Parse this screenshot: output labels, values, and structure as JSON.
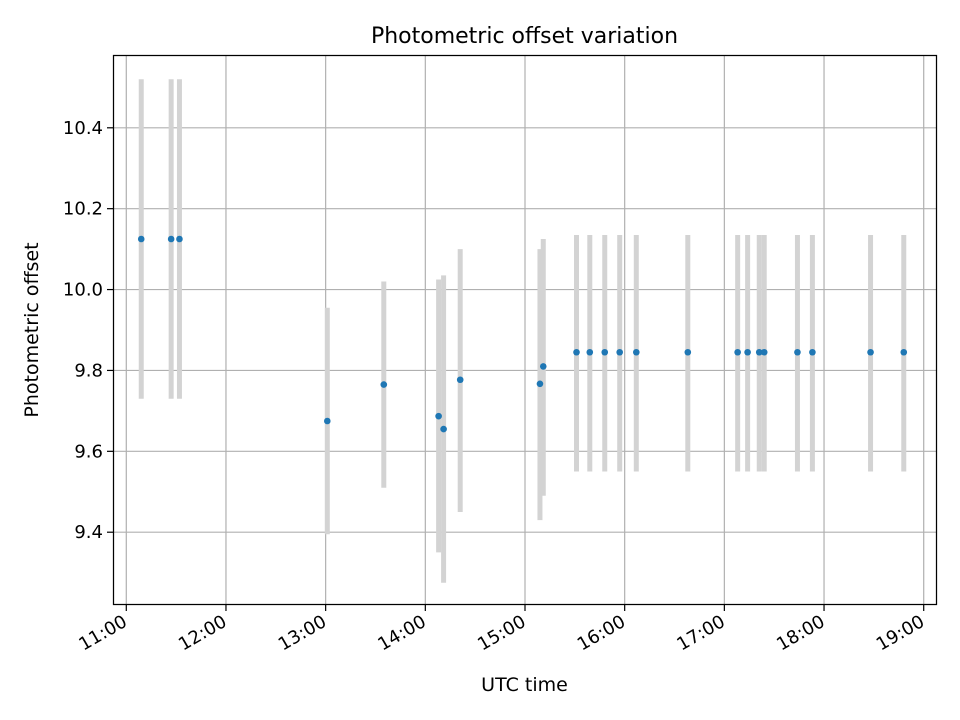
{
  "chart_data": {
    "type": "scatter",
    "title": "Photometric offset variation",
    "xlabel": "UTC time",
    "ylabel": "Photometric offset",
    "x_axis_kind": "time",
    "xlim": [
      "10:52",
      "19:08"
    ],
    "ylim": [
      9.22,
      10.58
    ],
    "x_ticks": [
      "11:00",
      "12:00",
      "13:00",
      "14:00",
      "15:00",
      "16:00",
      "17:00",
      "18:00",
      "19:00"
    ],
    "y_ticks": [
      9.4,
      9.6,
      9.8,
      10.0,
      10.2,
      10.4
    ],
    "grid": true,
    "colors": {
      "point": "#1f77b4",
      "errorbar": "#d3d3d3",
      "grid": "#b0b0b0"
    },
    "points": [
      {
        "x": "11:09",
        "y": 10.125,
        "yerr_low": 9.73,
        "yerr_high": 10.52
      },
      {
        "x": "11:27",
        "y": 10.125,
        "yerr_low": 9.73,
        "yerr_high": 10.52
      },
      {
        "x": "11:32",
        "y": 10.125,
        "yerr_low": 9.73,
        "yerr_high": 10.52
      },
      {
        "x": "13:01",
        "y": 9.675,
        "yerr_low": 9.395,
        "yerr_high": 9.955
      },
      {
        "x": "13:35",
        "y": 9.765,
        "yerr_low": 9.51,
        "yerr_high": 10.02
      },
      {
        "x": "14:08",
        "y": 9.687,
        "yerr_low": 9.35,
        "yerr_high": 10.025
      },
      {
        "x": "14:11",
        "y": 9.655,
        "yerr_low": 9.275,
        "yerr_high": 10.035
      },
      {
        "x": "14:21",
        "y": 9.777,
        "yerr_low": 9.45,
        "yerr_high": 10.1
      },
      {
        "x": "15:09",
        "y": 9.767,
        "yerr_low": 9.43,
        "yerr_high": 10.1
      },
      {
        "x": "15:11",
        "y": 9.81,
        "yerr_low": 9.49,
        "yerr_high": 10.125
      },
      {
        "x": "15:31",
        "y": 9.845,
        "yerr_low": 9.55,
        "yerr_high": 10.135
      },
      {
        "x": "15:39",
        "y": 9.845,
        "yerr_low": 9.55,
        "yerr_high": 10.135
      },
      {
        "x": "15:48",
        "y": 9.845,
        "yerr_low": 9.55,
        "yerr_high": 10.135
      },
      {
        "x": "15:57",
        "y": 9.845,
        "yerr_low": 9.55,
        "yerr_high": 10.135
      },
      {
        "x": "16:07",
        "y": 9.845,
        "yerr_low": 9.55,
        "yerr_high": 10.135
      },
      {
        "x": "16:38",
        "y": 9.845,
        "yerr_low": 9.55,
        "yerr_high": 10.135
      },
      {
        "x": "17:08",
        "y": 9.845,
        "yerr_low": 9.55,
        "yerr_high": 10.135
      },
      {
        "x": "17:14",
        "y": 9.845,
        "yerr_low": 9.55,
        "yerr_high": 10.135
      },
      {
        "x": "17:21",
        "y": 9.845,
        "yerr_low": 9.55,
        "yerr_high": 10.135
      },
      {
        "x": "17:24",
        "y": 9.845,
        "yerr_low": 9.55,
        "yerr_high": 10.135
      },
      {
        "x": "17:44",
        "y": 9.845,
        "yerr_low": 9.55,
        "yerr_high": 10.135
      },
      {
        "x": "17:53",
        "y": 9.845,
        "yerr_low": 9.55,
        "yerr_high": 10.135
      },
      {
        "x": "18:28",
        "y": 9.845,
        "yerr_low": 9.55,
        "yerr_high": 10.135
      },
      {
        "x": "18:48",
        "y": 9.845,
        "yerr_low": 9.55,
        "yerr_high": 10.135
      }
    ]
  }
}
